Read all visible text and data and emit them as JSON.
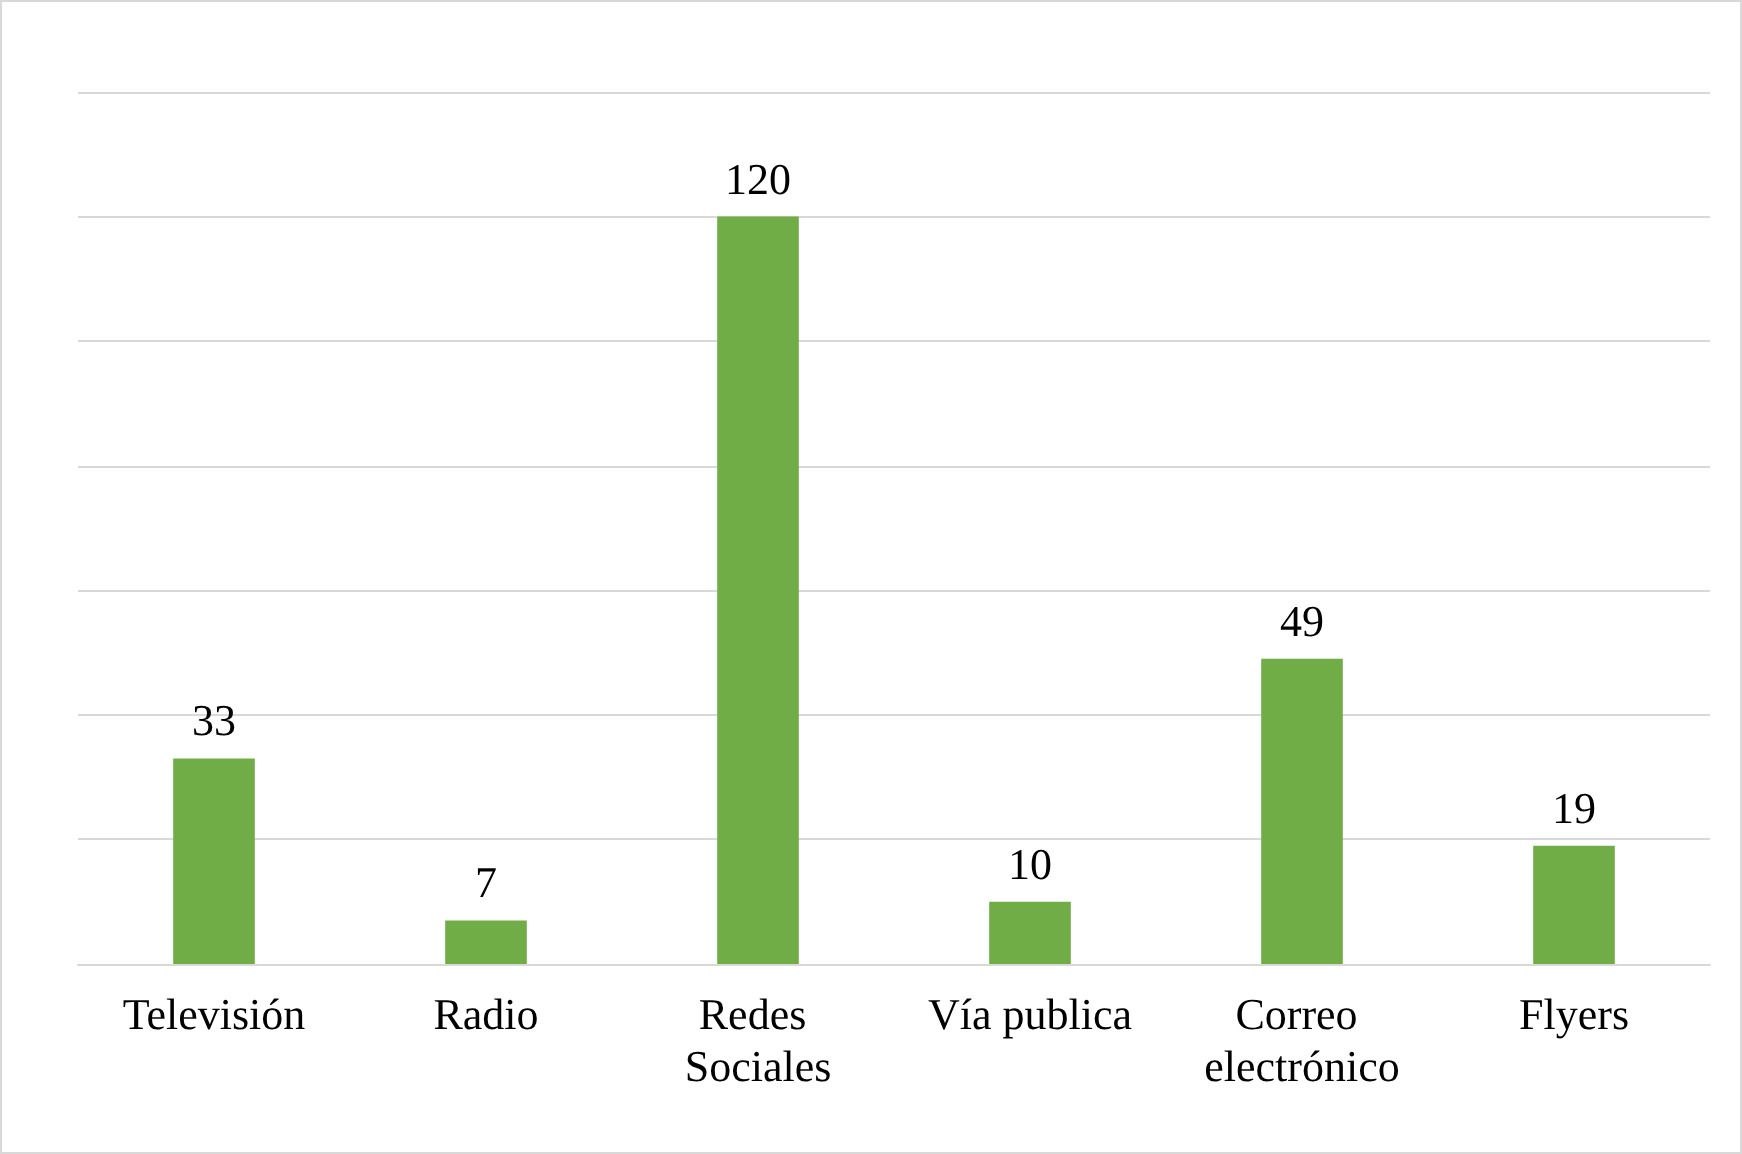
{
  "chart_data": {
    "type": "bar",
    "categories": [
      "Televisión",
      "Radio",
      "Redes Sociales",
      "Vía publica",
      "Correo electrónico",
      "Flyers"
    ],
    "values": [
      33,
      7,
      120,
      10,
      49,
      19
    ],
    "color": "#70ad47",
    "data_labels": true,
    "grid": "y",
    "tick_labels": "x",
    "ylim": [
      0,
      140
    ],
    "yticks": [
      {
        "value": 0,
        "label": null
      },
      {
        "value": 20,
        "label": null
      },
      {
        "value": 40,
        "label": null
      },
      {
        "value": 60,
        "label": null
      },
      {
        "value": 80,
        "label": null
      },
      {
        "value": 100,
        "label": null
      },
      {
        "value": 120,
        "label": null
      },
      {
        "value": 140,
        "label": null
      }
    ]
  }
}
